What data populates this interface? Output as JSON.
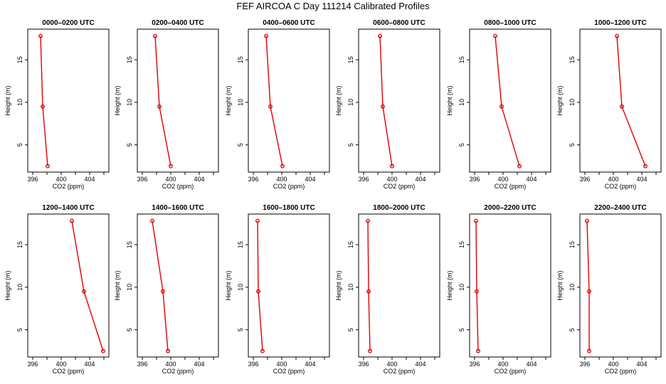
{
  "title": "FEF AIRCOA C  Day 111214  Calibrated Profiles",
  "chart_data": {
    "type": "line",
    "panels": [
      {
        "title": "0000–0200 UTC",
        "co2": [
          397.1,
          397.4,
          398.1
        ],
        "height": [
          17.8,
          9.5,
          2.5
        ]
      },
      {
        "title": "0200–0400 UTC",
        "co2": [
          397.8,
          398.4,
          400.0
        ],
        "height": [
          17.8,
          9.5,
          2.5
        ]
      },
      {
        "title": "0400–0600 UTC",
        "co2": [
          397.8,
          398.4,
          400.1
        ],
        "height": [
          17.8,
          9.5,
          2.5
        ]
      },
      {
        "title": "0600–0800 UTC",
        "co2": [
          398.3,
          398.7,
          400.0
        ],
        "height": [
          17.8,
          9.5,
          2.5
        ]
      },
      {
        "title": "0800–1000 UTC",
        "co2": [
          398.9,
          399.8,
          402.3
        ],
        "height": [
          17.8,
          9.5,
          2.5
        ]
      },
      {
        "title": "1000–1200 UTC",
        "co2": [
          400.5,
          401.2,
          404.5
        ],
        "height": [
          17.8,
          9.5,
          2.5
        ]
      },
      {
        "title": "1200–1400 UTC",
        "co2": [
          401.5,
          403.2,
          405.9
        ],
        "height": [
          17.8,
          9.5,
          2.5
        ]
      },
      {
        "title": "1400–1600 UTC",
        "co2": [
          397.4,
          398.9,
          399.6
        ],
        "height": [
          17.8,
          9.5,
          2.5
        ]
      },
      {
        "title": "1600–1800 UTC",
        "co2": [
          396.6,
          396.7,
          397.3
        ],
        "height": [
          17.8,
          9.5,
          2.5
        ]
      },
      {
        "title": "1800–2000 UTC",
        "co2": [
          396.6,
          396.7,
          396.9
        ],
        "height": [
          17.8,
          9.5,
          2.5
        ]
      },
      {
        "title": "2000–2200 UTC",
        "co2": [
          396.2,
          396.3,
          396.5
        ],
        "height": [
          17.8,
          9.5,
          2.5
        ]
      },
      {
        "title": "2200–2400 UTC",
        "co2": [
          396.3,
          396.6,
          396.6
        ],
        "height": [
          17.8,
          9.5,
          2.5
        ]
      }
    ],
    "xlabel": "CO2 (ppm)",
    "ylabel": "Height (m)",
    "xlim": [
      395.3,
      406.7
    ],
    "ylim": [
      1.8,
      18.6
    ],
    "xticks": [
      396,
      400,
      404
    ],
    "xticks_unlabeled": [
      398,
      402,
      406
    ],
    "yticks": [
      5,
      10,
      15
    ],
    "grid": false,
    "legend": "none",
    "series_color": "#e00000",
    "marker": "open-circle"
  }
}
